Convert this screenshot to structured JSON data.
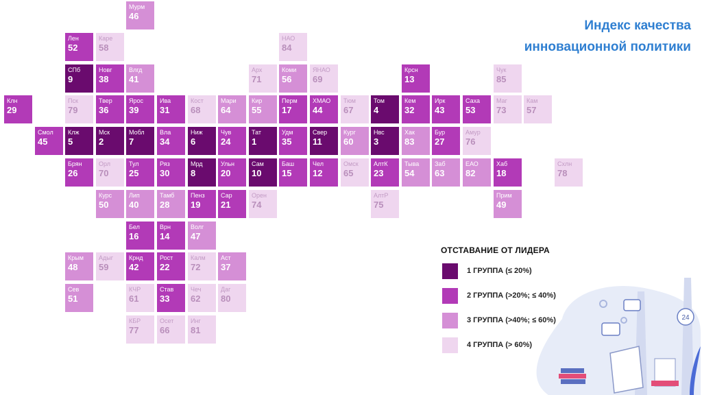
{
  "title": {
    "line1": "Индекс качества",
    "line2": "инновационной политики"
  },
  "colors": {
    "group1": "#6a0b6e",
    "group2": "#b23ab7",
    "group3": "#d58fd6",
    "group4": "#efd6ef",
    "title": "#2f7fd1"
  },
  "legend": {
    "title": "ОТСТАВАНИЕ ОТ ЛИДЕРА",
    "items": [
      {
        "group": 1,
        "label": "1 ГРУППА (≤ 20%)"
      },
      {
        "group": 2,
        "label": "2 ГРУППА (>20%; ≤ 40%)"
      },
      {
        "group": 3,
        "label": "3 ГРУППА (>40%; ≤ 60%)"
      },
      {
        "group": 4,
        "label": "4 ГРУППА (> 60%)"
      }
    ]
  },
  "regions": [
    {
      "abbr": "Мурм",
      "rank": "46",
      "group": 3,
      "col": 4,
      "row": 0
    },
    {
      "abbr": "Лен",
      "rank": "52",
      "group": 2,
      "col": 2,
      "row": 1
    },
    {
      "abbr": "Каре",
      "rank": "58",
      "group": 4,
      "col": 3,
      "row": 1
    },
    {
      "abbr": "НАО",
      "rank": "84",
      "group": 4,
      "col": 9,
      "row": 1
    },
    {
      "abbr": "СПб",
      "rank": "9",
      "group": 1,
      "col": 2,
      "row": 2
    },
    {
      "abbr": "Новг",
      "rank": "38",
      "group": 2,
      "col": 3,
      "row": 2
    },
    {
      "abbr": "Влгд",
      "rank": "41",
      "group": 3,
      "col": 4,
      "row": 2
    },
    {
      "abbr": "Арх",
      "rank": "71",
      "group": 4,
      "col": 8,
      "row": 2
    },
    {
      "abbr": "Коми",
      "rank": "56",
      "group": 3,
      "col": 9,
      "row": 2
    },
    {
      "abbr": "ЯНАО",
      "rank": "69",
      "group": 4,
      "col": 10,
      "row": 2
    },
    {
      "abbr": "Крсн",
      "rank": "13",
      "group": 2,
      "col": 13,
      "row": 2
    },
    {
      "abbr": "Чук",
      "rank": "85",
      "group": 4,
      "col": 16,
      "row": 2
    },
    {
      "abbr": "Клн",
      "rank": "29",
      "group": 2,
      "col": 0,
      "row": 3
    },
    {
      "abbr": "Пск",
      "rank": "79",
      "group": 4,
      "col": 2,
      "row": 3
    },
    {
      "abbr": "Твер",
      "rank": "36",
      "group": 2,
      "col": 3,
      "row": 3
    },
    {
      "abbr": "Ярос",
      "rank": "39",
      "group": 2,
      "col": 4,
      "row": 3
    },
    {
      "abbr": "Ива",
      "rank": "31",
      "group": 2,
      "col": 5,
      "row": 3
    },
    {
      "abbr": "Кост",
      "rank": "68",
      "group": 4,
      "col": 6,
      "row": 3
    },
    {
      "abbr": "Мари",
      "rank": "64",
      "group": 3,
      "col": 7,
      "row": 3
    },
    {
      "abbr": "Кир",
      "rank": "55",
      "group": 3,
      "col": 8,
      "row": 3
    },
    {
      "abbr": "Перм",
      "rank": "17",
      "group": 2,
      "col": 9,
      "row": 3
    },
    {
      "abbr": "ХМАО",
      "rank": "44",
      "group": 2,
      "col": 10,
      "row": 3
    },
    {
      "abbr": "Тюм",
      "rank": "67",
      "group": 4,
      "col": 11,
      "row": 3
    },
    {
      "abbr": "Том",
      "rank": "4",
      "group": 1,
      "col": 12,
      "row": 3
    },
    {
      "abbr": "Кем",
      "rank": "32",
      "group": 2,
      "col": 13,
      "row": 3
    },
    {
      "abbr": "Ирк",
      "rank": "43",
      "group": 2,
      "col": 14,
      "row": 3
    },
    {
      "abbr": "Саха",
      "rank": "53",
      "group": 2,
      "col": 15,
      "row": 3
    },
    {
      "abbr": "Маг",
      "rank": "73",
      "group": 4,
      "col": 16,
      "row": 3
    },
    {
      "abbr": "Кам",
      "rank": "57",
      "group": 4,
      "col": 17,
      "row": 3
    },
    {
      "abbr": "Смол",
      "rank": "45",
      "group": 2,
      "col": 1,
      "row": 4
    },
    {
      "abbr": "Клж",
      "rank": "5",
      "group": 1,
      "col": 2,
      "row": 4
    },
    {
      "abbr": "Мск",
      "rank": "2",
      "group": 1,
      "col": 3,
      "row": 4
    },
    {
      "abbr": "Мобл",
      "rank": "7",
      "group": 1,
      "col": 4,
      "row": 4
    },
    {
      "abbr": "Вла",
      "rank": "34",
      "group": 2,
      "col": 5,
      "row": 4
    },
    {
      "abbr": "Ниж",
      "rank": "6",
      "group": 1,
      "col": 6,
      "row": 4
    },
    {
      "abbr": "Чув",
      "rank": "24",
      "group": 2,
      "col": 7,
      "row": 4
    },
    {
      "abbr": "Тат",
      "rank": "1",
      "group": 1,
      "col": 8,
      "row": 4
    },
    {
      "abbr": "Удм",
      "rank": "35",
      "group": 2,
      "col": 9,
      "row": 4
    },
    {
      "abbr": "Свер",
      "rank": "11",
      "group": 1,
      "col": 10,
      "row": 4
    },
    {
      "abbr": "Кург",
      "rank": "60",
      "group": 3,
      "col": 11,
      "row": 4
    },
    {
      "abbr": "Нвс",
      "rank": "3",
      "group": 1,
      "col": 12,
      "row": 4
    },
    {
      "abbr": "Хак",
      "rank": "83",
      "group": 3,
      "col": 13,
      "row": 4
    },
    {
      "abbr": "Бур",
      "rank": "27",
      "group": 2,
      "col": 14,
      "row": 4
    },
    {
      "abbr": "Амур",
      "rank": "76",
      "group": 4,
      "col": 15,
      "row": 4
    },
    {
      "abbr": "Брян",
      "rank": "26",
      "group": 2,
      "col": 2,
      "row": 5
    },
    {
      "abbr": "Орл",
      "rank": "70",
      "group": 4,
      "col": 3,
      "row": 5
    },
    {
      "abbr": "Тул",
      "rank": "25",
      "group": 2,
      "col": 4,
      "row": 5
    },
    {
      "abbr": "Ряз",
      "rank": "30",
      "group": 2,
      "col": 5,
      "row": 5
    },
    {
      "abbr": "Мрд",
      "rank": "8",
      "group": 1,
      "col": 6,
      "row": 5
    },
    {
      "abbr": "Ульн",
      "rank": "20",
      "group": 2,
      "col": 7,
      "row": 5
    },
    {
      "abbr": "Сам",
      "rank": "10",
      "group": 1,
      "col": 8,
      "row": 5
    },
    {
      "abbr": "Баш",
      "rank": "15",
      "group": 2,
      "col": 9,
      "row": 5
    },
    {
      "abbr": "Чел",
      "rank": "12",
      "group": 2,
      "col": 10,
      "row": 5
    },
    {
      "abbr": "Омск",
      "rank": "65",
      "group": 4,
      "col": 11,
      "row": 5
    },
    {
      "abbr": "АлтК",
      "rank": "23",
      "group": 2,
      "col": 12,
      "row": 5
    },
    {
      "abbr": "Тыва",
      "rank": "54",
      "group": 3,
      "col": 13,
      "row": 5
    },
    {
      "abbr": "Заб",
      "rank": "63",
      "group": 3,
      "col": 14,
      "row": 5
    },
    {
      "abbr": "ЕАО",
      "rank": "82",
      "group": 3,
      "col": 15,
      "row": 5
    },
    {
      "abbr": "Хаб",
      "rank": "18",
      "group": 2,
      "col": 16,
      "row": 5
    },
    {
      "abbr": "Схлн",
      "rank": "78",
      "group": 4,
      "col": 18,
      "row": 5
    },
    {
      "abbr": "Курс",
      "rank": "50",
      "group": 3,
      "col": 3,
      "row": 6
    },
    {
      "abbr": "Лип",
      "rank": "40",
      "group": 3,
      "col": 4,
      "row": 6
    },
    {
      "abbr": "Тамб",
      "rank": "28",
      "group": 3,
      "col": 5,
      "row": 6
    },
    {
      "abbr": "Пенз",
      "rank": "19",
      "group": 2,
      "col": 6,
      "row": 6
    },
    {
      "abbr": "Сар",
      "rank": "21",
      "group": 2,
      "col": 7,
      "row": 6
    },
    {
      "abbr": "Орен",
      "rank": "74",
      "group": 4,
      "col": 8,
      "row": 6
    },
    {
      "abbr": "АлтР",
      "rank": "75",
      "group": 4,
      "col": 12,
      "row": 6
    },
    {
      "abbr": "Прим",
      "rank": "49",
      "group": 3,
      "col": 16,
      "row": 6
    },
    {
      "abbr": "Бел",
      "rank": "16",
      "group": 2,
      "col": 4,
      "row": 7
    },
    {
      "abbr": "Врн",
      "rank": "14",
      "group": 2,
      "col": 5,
      "row": 7
    },
    {
      "abbr": "Волг",
      "rank": "47",
      "group": 3,
      "col": 6,
      "row": 7
    },
    {
      "abbr": "Крым",
      "rank": "48",
      "group": 3,
      "col": 2,
      "row": 8
    },
    {
      "abbr": "Адыг",
      "rank": "59",
      "group": 4,
      "col": 3,
      "row": 8
    },
    {
      "abbr": "Крнд",
      "rank": "42",
      "group": 2,
      "col": 4,
      "row": 8
    },
    {
      "abbr": "Рост",
      "rank": "22",
      "group": 2,
      "col": 5,
      "row": 8
    },
    {
      "abbr": "Калм",
      "rank": "72",
      "group": 4,
      "col": 6,
      "row": 8
    },
    {
      "abbr": "Аст",
      "rank": "37",
      "group": 3,
      "col": 7,
      "row": 8
    },
    {
      "abbr": "Сев",
      "rank": "51",
      "group": 3,
      "col": 2,
      "row": 9
    },
    {
      "abbr": "КЧР",
      "rank": "61",
      "group": 4,
      "col": 4,
      "row": 9
    },
    {
      "abbr": "Став",
      "rank": "33",
      "group": 2,
      "col": 5,
      "row": 9
    },
    {
      "abbr": "Чеч",
      "rank": "62",
      "group": 4,
      "col": 6,
      "row": 9
    },
    {
      "abbr": "Даг",
      "rank": "80",
      "group": 4,
      "col": 7,
      "row": 9
    },
    {
      "abbr": "КБР",
      "rank": "77",
      "group": 4,
      "col": 4,
      "row": 10
    },
    {
      "abbr": "Осет",
      "rank": "66",
      "group": 4,
      "col": 5,
      "row": 10
    },
    {
      "abbr": "Инг",
      "rank": "81",
      "group": 4,
      "col": 6,
      "row": 10
    }
  ],
  "decoration": {
    "badge_text": "24"
  }
}
